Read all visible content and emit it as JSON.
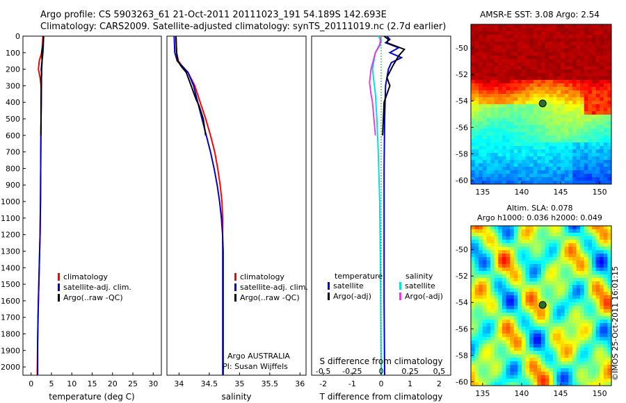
{
  "title_line1": "Argo profile: CS 5903263_61 21-Oct-2011 20111023_191 54.189S 142.693E",
  "title_line2": "Climatology: CARS2009. Satellite-adjusted climatology: synTS_20111019.nc (2.7d earlier)",
  "colors": {
    "climatology": "#ff0000",
    "satellite": "#0000cc",
    "argo": "#000000",
    "argo_adj_s": "#e040e0",
    "satellite_s": "#00e0e0",
    "marker": "#2a6e2a"
  },
  "depth_ticks": [
    "0",
    "100",
    "200",
    "300",
    "400",
    "500",
    "600",
    "700",
    "800",
    "900",
    "1000",
    "1100",
    "1200",
    "1300",
    "1400",
    "1500",
    "1600",
    "1700",
    "1800",
    "1900",
    "2000"
  ],
  "panels": {
    "temperature": {
      "xlabel": "temperature (deg C)",
      "xticks": [
        "0",
        "5",
        "10",
        "15",
        "20",
        "25",
        "30"
      ],
      "legend": [
        "climatology",
        "satellite-adj. clim.",
        "Argo(..raw -QC)"
      ]
    },
    "salinity": {
      "xlabel": "salinity",
      "xticks": [
        "34",
        "34.5",
        "35",
        "35.5",
        "36"
      ],
      "legend": [
        "climatology",
        "satellite-adj. clim.",
        "Argo(..raw -QC)"
      ],
      "note1": "Argo AUSTRALIA",
      "note2": "PI: Susan Wijffels"
    },
    "difference": {
      "xlabel_bottom": "T difference from climatology",
      "xlabel_top": "S difference from climatology",
      "xticks_t": [
        "-2",
        "-1",
        "0",
        "1",
        "2"
      ],
      "xticks_s": [
        "-0.5",
        "-0.25",
        "0",
        "0.25",
        "0.5"
      ],
      "legend_t_title": "temperature",
      "legend_t": [
        "satellite",
        "Argo(-adj)"
      ],
      "legend_s_title": "salinity",
      "legend_s": [
        "satellite",
        "Argo(-adj)"
      ]
    }
  },
  "maps": {
    "sst_title": "AMSR-E SST: 3.08 Argo: 2.54",
    "sla_title1": "Altim. SLA: 0.078",
    "sla_title2": "Argo h1000: 0.036 h2000: 0.049",
    "yticks": [
      "-50",
      "-52",
      "-54",
      "-56",
      "-58",
      "-60"
    ],
    "xticks": [
      "135",
      "140",
      "145",
      "150"
    ],
    "credit": "©IMOS 25-Oct-2011 16:01:15"
  },
  "chart_data": [
    {
      "type": "line",
      "xlabel": "temperature (deg C)",
      "ylabel": "",
      "xlim": [
        -2,
        32
      ],
      "ylim": [
        2050,
        0
      ],
      "series": [
        {
          "name": "climatology",
          "x": [
            2.9,
            2.8,
            2.6,
            2.0,
            1.8,
            2.2,
            2.45,
            2.5,
            2.45,
            2.4,
            2.35,
            2.3,
            2.25,
            2.2,
            2.1,
            2.0,
            1.9,
            1.8,
            1.7,
            1.6,
            1.5
          ],
          "y": [
            0,
            50,
            100,
            150,
            200,
            250,
            300,
            400,
            500,
            600,
            800,
            1000,
            1100,
            1200,
            1300,
            1400,
            1500,
            1600,
            1700,
            1850,
            2050
          ]
        },
        {
          "name": "satellite-adj. clim.",
          "x": [
            3.1,
            3.0,
            2.9,
            2.7,
            2.6,
            2.55,
            2.55,
            2.5,
            2.45,
            2.4,
            2.35,
            2.3,
            2.2,
            2.1,
            2.0,
            1.9,
            1.8,
            1.7,
            1.6,
            1.6
          ],
          "y": [
            0,
            50,
            100,
            150,
            200,
            250,
            300,
            400,
            500,
            600,
            800,
            1000,
            1200,
            1300,
            1400,
            1500,
            1600,
            1700,
            1850,
            2050
          ]
        },
        {
          "name": "Argo(..raw -QC)",
          "x": [
            3.0,
            2.9,
            2.6,
            2.7,
            2.5,
            2.6,
            2.5,
            2.5,
            2.45,
            2.45,
            2.4
          ],
          "y": [
            0,
            50,
            100,
            150,
            200,
            230,
            260,
            300,
            400,
            500,
            600
          ]
        }
      ]
    },
    {
      "type": "line",
      "xlabel": "salinity",
      "ylabel": "",
      "xlim": [
        33.8,
        36.1
      ],
      "ylim": [
        2050,
        0
      ],
      "series": [
        {
          "name": "climatology",
          "x": [
            33.95,
            33.96,
            33.99,
            34.05,
            34.15,
            34.26,
            34.35,
            34.44,
            34.52,
            34.59,
            34.64,
            34.68,
            34.71,
            34.72,
            34.72,
            34.72,
            34.72,
            34.72,
            34.72,
            34.72,
            34.72
          ],
          "y": [
            0,
            100,
            150,
            180,
            220,
            300,
            400,
            500,
            600,
            700,
            800,
            900,
            1000,
            1100,
            1200,
            1300,
            1400,
            1500,
            1600,
            1800,
            2050
          ]
        },
        {
          "name": "satellite-adj. clim.",
          "x": [
            33.92,
            33.93,
            33.97,
            34.05,
            34.15,
            34.24,
            34.31,
            34.38,
            34.45,
            34.52,
            34.58,
            34.63,
            34.67,
            34.7,
            34.72,
            34.73,
            34.73,
            34.73,
            34.73,
            34.73
          ],
          "y": [
            0,
            100,
            150,
            180,
            220,
            300,
            400,
            500,
            600,
            700,
            800,
            900,
            1000,
            1100,
            1200,
            1300,
            1400,
            1600,
            1800,
            2050
          ]
        },
        {
          "name": "Argo(..raw -QC)",
          "x": [
            33.95,
            33.96,
            33.98,
            34.03,
            34.12,
            34.2,
            34.28,
            34.33,
            34.4,
            34.44
          ],
          "y": [
            0,
            100,
            150,
            180,
            220,
            300,
            380,
            420,
            500,
            600
          ]
        }
      ]
    },
    {
      "type": "line",
      "xlabel": "T difference from climatology",
      "x2label": "S difference from climatology",
      "ylabel": "",
      "xlim": [
        -2.4,
        2.4
      ],
      "ylim": [
        2050,
        0
      ],
      "series": [
        {
          "name": "temperature satellite",
          "x": [
            0.2,
            0.3,
            0.15,
            0.6,
            0.3,
            0.7,
            0.35,
            0.25,
            0.15,
            0.12,
            0.1,
            0.1,
            0.1,
            0.12
          ],
          "y": [
            0,
            20,
            40,
            70,
            100,
            130,
            160,
            200,
            300,
            500,
            800,
            1200,
            1600,
            2050
          ]
        },
        {
          "name": "temperature Argo(-adj)",
          "x": [
            0.1,
            0.25,
            0.2,
            0.8,
            0.6,
            0.4,
            0.2,
            0.3,
            0.1,
            0.05
          ],
          "y": [
            0,
            20,
            40,
            80,
            120,
            180,
            250,
            300,
            400,
            600
          ]
        },
        {
          "name": "salinity satellite",
          "x": [
            -0.1,
            0.0,
            -0.05,
            -0.2,
            -0.3,
            -0.2,
            -0.15,
            -0.1,
            -0.05,
            -0.02,
            0.0
          ],
          "y": [
            0,
            30,
            60,
            100,
            200,
            350,
            500,
            700,
            1000,
            1500,
            2050
          ]
        },
        {
          "name": "salinity Argo(-adj)",
          "x": [
            0.0,
            -0.05,
            -0.2,
            -0.35,
            -0.4,
            -0.35,
            -0.3,
            -0.25,
            -0.2
          ],
          "y": [
            0,
            50,
            100,
            200,
            280,
            350,
            400,
            500,
            600
          ]
        }
      ]
    },
    {
      "type": "heatmap",
      "title": "AMSR-E SST: 3.08 Argo: 2.54",
      "xlim": [
        133.5,
        151.5
      ],
      "ylim": [
        -60.3,
        -48.2
      ],
      "marker": {
        "lon": 142.693,
        "lat": -54.189
      }
    },
    {
      "type": "heatmap",
      "title": "Altim. SLA: 0.078",
      "subtitle": "Argo h1000: 0.036 h2000: 0.049",
      "xlim": [
        133.5,
        151.5
      ],
      "ylim": [
        -60.3,
        -48.2
      ],
      "marker": {
        "lon": 142.693,
        "lat": -54.189
      }
    }
  ]
}
